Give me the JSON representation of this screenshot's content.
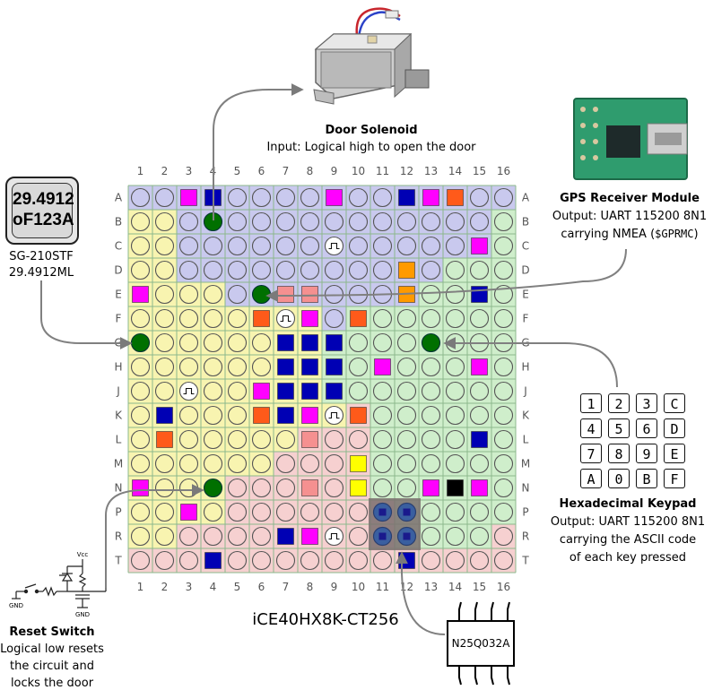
{
  "board": {
    "col_labels": [
      "1",
      "2",
      "3",
      "4",
      "5",
      "6",
      "7",
      "8",
      "9",
      "10",
      "11",
      "12",
      "13",
      "14",
      "15",
      "16"
    ],
    "row_labels": [
      "A",
      "B",
      "C",
      "D",
      "E",
      "F",
      "G",
      "H",
      "J",
      "K",
      "L",
      "M",
      "N",
      "P",
      "R",
      "T"
    ],
    "part_name": "iCE40HX8K-CT256",
    "region_colors": {
      "blue": "#c9c9ee",
      "yellow": "#f8f4b0",
      "green": "#cfeecb",
      "red": "#f6d0d0"
    },
    "regions": [
      "BBBBBBBBBBBBBBBB",
      "YYBBBBBBBBBBBBBG",
      "YYBBBBBBBBBBBBBG",
      "YYBBBBBBBBBBBGGG",
      "YYYYBBBBBBBBGGGG",
      "YYYYYYYYBGGGGGGG",
      "YYYYYYYYGGGGGGGG",
      "YYYYYYYYGGGGGGGG",
      "YYYYYYYYGGGGGGGG",
      "YYYYYYYYYRGGGGGG",
      "YYYYYYYRRRGGGGGG",
      "YYYYYYRRRRGGGGGG",
      "YYYYRRRRRRGGGGGG",
      "YYYYRRRRRRRGGGGG",
      "YYRRRRRRRRRGGGGR",
      "RRRRRRRRRRRRRRRR"
    ],
    "pin_colors": {
      "M": "#ff00ff",
      "B": "#0000b4",
      "O": "#ff5a1a",
      "A": "#ff9a00",
      "Y": "#ffff00",
      "K": "#000000",
      "P": "#f59090",
      "G": "#007000"
    },
    "pins": [
      "..MB....M..BMO..",
      "...G............",
      "........C.....M.",
      "...........A....",
      "M....GPP...A..B.",
      ".....OCM.O......",
      "G.....BBB...G...",
      "......BBB.M...M.",
      "..C..MBBB.......",
      ".B...OBMCO......",
      ".O.....P......B.",
      ".........Y......",
      "M..G...P.Y..MKM.",
      "..M.............",
      "......BMC.M.....",
      "...B.......B...."
    ]
  },
  "solenoid": {
    "title": "Door Solenoid",
    "desc": "Input: Logical high to open the door"
  },
  "gps": {
    "title": "GPS Receiver Module",
    "line1": "Output: UART 115200 8N1",
    "line2": "carrying NMEA (",
    "code": "$GPRMC",
    "line2_end": ")"
  },
  "oscillator": {
    "line1": "29.4912",
    "line2": "oF123A",
    "part": "SG-210STF",
    "freq": "29.4912ML"
  },
  "keypad": {
    "keys": [
      "1",
      "2",
      "3",
      "C",
      "4",
      "5",
      "6",
      "D",
      "7",
      "8",
      "9",
      "E",
      "A",
      "0",
      "B",
      "F"
    ],
    "title": "Hexadecimal Keypad",
    "line1": "Output: UART 115200 8N1",
    "line2": "carrying the ASCII code",
    "line3": "of each key pressed"
  },
  "reset": {
    "title": "Reset Switch",
    "line1": "Logical low resets",
    "line2": "the circuit and",
    "line3": "locks the door",
    "vcc": "Vcc",
    "gnd": "GND"
  },
  "flash": {
    "label": "N25Q032A"
  },
  "colors": {
    "arrow": "#808080",
    "grid": "#8cb88c"
  }
}
